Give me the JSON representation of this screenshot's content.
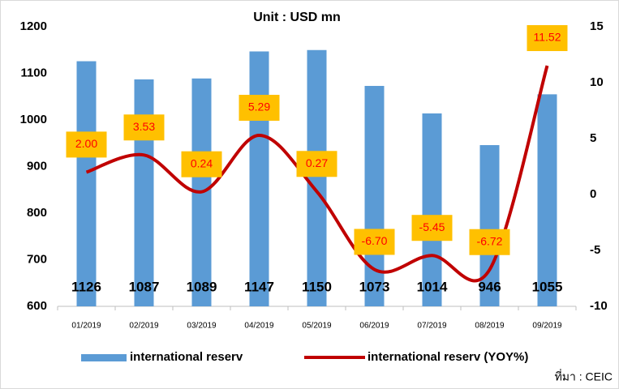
{
  "chart_data": {
    "type": "combo",
    "title": "Unit : USD mn",
    "source": "ที่มา : CEIC",
    "categories": [
      "01/2019",
      "02/2019",
      "03/2019",
      "04/2019",
      "05/2019",
      "06/2019",
      "07/2019",
      "08/2019",
      "09/2019"
    ],
    "series": [
      {
        "name": "international reserv",
        "type": "bar",
        "color": "#5b9bd5",
        "values": [
          1126,
          1087,
          1089,
          1147,
          1150,
          1073,
          1014,
          946,
          1055
        ]
      },
      {
        "name": "international reserv (YOY%)",
        "type": "line",
        "axis": "y2",
        "color": "#c00000",
        "values": [
          2,
          3.53,
          0.24,
          5.29,
          0.27,
          -6.7,
          -5.45,
          -6.72,
          11.52
        ],
        "value_labels": [
          "2.00",
          "3.53",
          "0.24",
          "5.29",
          "0.27",
          "-6.70",
          "-5.45",
          "-6.72",
          "11.52"
        ],
        "label_box_color": "#ffc000",
        "label_color": "#ff0000"
      }
    ],
    "ylim": [
      600,
      1200
    ],
    "yticks": [
      600,
      700,
      800,
      900,
      1000,
      1100,
      1200
    ],
    "y2lim": [
      -10,
      15
    ],
    "y2ticks": [
      -10,
      -5,
      0,
      5,
      10,
      15
    ],
    "grid": false,
    "legend": "bottom"
  }
}
